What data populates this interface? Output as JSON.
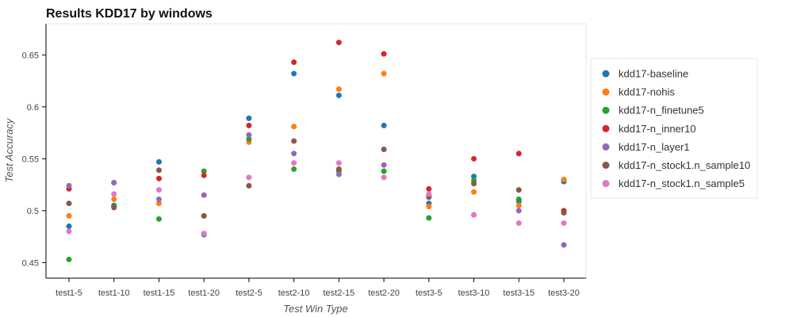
{
  "chart_data": {
    "type": "scatter",
    "title": "Results KDD17 by windows",
    "xlabel": "Test Win Type",
    "ylabel": "Test Accuracy",
    "ylim": [
      0.435,
      0.68
    ],
    "yticks": [
      0.45,
      0.5,
      0.55,
      0.6,
      0.65
    ],
    "ytick_labels": [
      "0.45",
      "0.5",
      "0.55",
      "0.6",
      "0.65"
    ],
    "categories": [
      "test1-5",
      "test1-10",
      "test1-15",
      "test1-20",
      "test2-5",
      "test2-10",
      "test2-15",
      "test2-20",
      "test3-5",
      "test3-10",
      "test3-15",
      "test3-20"
    ],
    "grid": false,
    "legend_position": "right",
    "series": [
      {
        "name": "kdd17-baseline",
        "color": "#1f77b4",
        "values": [
          0.485,
          0.505,
          0.547,
          0.477,
          0.589,
          0.632,
          0.611,
          0.582,
          0.507,
          0.533,
          0.509,
          0.528
        ]
      },
      {
        "name": "kdd17-nohis",
        "color": "#ff7f0e",
        "values": [
          0.495,
          0.511,
          0.507,
          0.495,
          0.566,
          0.581,
          0.617,
          0.632,
          0.504,
          0.518,
          0.505,
          0.53
        ]
      },
      {
        "name": "kdd17-n_finetune5",
        "color": "#2ca02c",
        "values": [
          0.453,
          0.504,
          0.492,
          0.538,
          0.569,
          0.54,
          0.538,
          0.538,
          0.493,
          0.529,
          0.511,
          0.498
        ]
      },
      {
        "name": "kdd17-n_inner10",
        "color": "#d62728",
        "values": [
          0.521,
          0.527,
          0.531,
          0.534,
          0.582,
          0.643,
          0.662,
          0.651,
          0.521,
          0.55,
          0.555,
          0.5
        ]
      },
      {
        "name": "kdd17-n_layer1",
        "color": "#9467bd",
        "values": [
          0.524,
          0.527,
          0.511,
          0.515,
          0.573,
          0.555,
          0.535,
          0.544,
          0.515,
          0.496,
          0.5,
          0.467
        ]
      },
      {
        "name": "kdd17-n_stock1.n_sample10",
        "color": "#8c564b",
        "values": [
          0.507,
          0.503,
          0.539,
          0.495,
          0.524,
          0.567,
          0.54,
          0.559,
          0.513,
          0.526,
          0.52,
          0.498
        ]
      },
      {
        "name": "kdd17-n_stock1.n_sample5",
        "color": "#e377c2",
        "values": [
          0.48,
          0.516,
          0.52,
          0.478,
          0.532,
          0.546,
          0.546,
          0.532,
          0.516,
          0.496,
          0.488,
          0.488
        ]
      }
    ]
  }
}
